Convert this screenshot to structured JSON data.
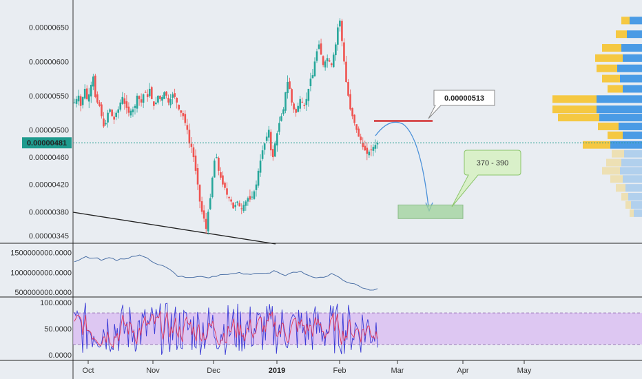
{
  "chart_data": [
    {
      "panel": "price",
      "type": "candlestick",
      "y_ticks": [
        "0.00000650",
        "0.00000600",
        "0.00000550",
        "0.00000500",
        "0.00000460",
        "0.00000420",
        "0.00000380",
        "0.00000345"
      ],
      "ylim": [
        3.4e-06,
        6.8e-06
      ],
      "current_price_label": "0.00000481",
      "current_price": 4.81e-06,
      "close_series": [
        5.4e-06,
        5.45e-06,
        5.5e-06,
        5.35e-06,
        5.48e-06,
        5.6e-06,
        5.45e-06,
        5.52e-06,
        5.66e-06,
        5.78e-06,
        5.48e-06,
        5.4e-06,
        5.35e-06,
        5.2e-06,
        5.05e-06,
        5.1e-06,
        5.25e-06,
        5.3e-06,
        5.2e-06,
        5.15e-06,
        5.25e-06,
        5.3e-06,
        5.4e-06,
        5.48e-06,
        5.38e-06,
        5.32e-06,
        5.25e-06,
        5.28e-06,
        5.3e-06,
        5.35e-06,
        5.5e-06,
        5.45e-06,
        5.4e-06,
        5.52e-06,
        5.55e-06,
        5.48e-06,
        5.6e-06,
        5.45e-06,
        5.35e-06,
        5.4e-06,
        5.5e-06,
        5.45e-06,
        5.48e-06,
        5.55e-06,
        5.5e-06,
        5.4e-06,
        5.45e-06,
        5.52e-06,
        5.48e-06,
        5.4e-06,
        5.3e-06,
        5.25e-06,
        5.2e-06,
        5.1e-06,
        5e-06,
        4.8e-06,
        4.75e-06,
        4.6e-06,
        4.4e-06,
        4.2e-06,
        3.95e-06,
        3.8e-06,
        3.7e-06,
        3.55e-06,
        3.8e-06,
        4e-06,
        4.3e-06,
        4.55e-06,
        4.6e-06,
        4.4e-06,
        4.3e-06,
        4.2e-06,
        4.15e-06,
        4.05e-06,
        4e-06,
        3.95e-06,
        3.85e-06,
        3.9e-06,
        3.95e-06,
        3.88e-06,
        3.85e-06,
        3.9e-06,
        3.95e-06,
        4e-06,
        3.98e-06,
        4.02e-06,
        4.1e-06,
        4.2e-06,
        4.4e-06,
        4.55e-06,
        4.7e-06,
        4.8e-06,
        4.9e-06,
        5e-06,
        4.7e-06,
        4.6e-06,
        4.8e-06,
        4.95e-06,
        5.1e-06,
        5.2e-06,
        5.3e-06,
        5.55e-06,
        5.7e-06,
        5.6e-06,
        5.4e-06,
        5.3e-06,
        5.25e-06,
        5.35e-06,
        5.45e-06,
        5.4e-06,
        5.35e-06,
        5.45e-06,
        5.6e-06,
        5.75e-06,
        5.8e-06,
        6e-06,
        6.15e-06,
        6.25e-06,
        6.1e-06,
        5.95e-06,
        6e-06,
        6.05e-06,
        6e-06,
        5.95e-06,
        6.1e-06,
        6.25e-06,
        6.5e-06,
        6.6e-06,
        6.3e-06,
        6e-06,
        5.7e-06,
        5.5e-06,
        5.3e-06,
        5.2e-06,
        5.1e-06,
        5e-06,
        4.9e-06,
        4.85e-06,
        4.75e-06,
        4.7e-06,
        4.65e-06,
        4.68e-06,
        4.7e-06,
        4.75e-06,
        4.78e-06,
        4.81e-06
      ],
      "horizontal_level_label": "0.00000513",
      "horizontal_level": 5.13e-06,
      "target_zone_label": "370 - 390",
      "target_zone": [
        3.7e-06,
        3.9e-06
      ],
      "annotations": [
        "0.00000513",
        "370 - 390"
      ]
    },
    {
      "panel": "volume-line",
      "type": "line",
      "y_ticks": [
        "1500000000.0000",
        "1000000000.0000",
        "500000000.0000"
      ],
      "ylim": [
        450000000,
        1650000000
      ],
      "values": [
        1250000000,
        1300000000,
        1350000000,
        1380000000,
        1360000000,
        1350000000,
        1340000000,
        1330000000,
        1350000000,
        1360000000,
        1340000000,
        1320000000,
        1330000000,
        1350000000,
        1360000000,
        1400000000,
        1430000000,
        1420000000,
        1380000000,
        1340000000,
        1300000000,
        1250000000,
        1200000000,
        1150000000,
        1100000000,
        1050000000,
        980000000,
        920000000,
        880000000,
        850000000,
        860000000,
        880000000,
        900000000,
        880000000,
        870000000,
        860000000,
        880000000,
        900000000,
        920000000,
        950000000,
        960000000,
        980000000,
        1000000000,
        990000000,
        980000000,
        970000000,
        960000000,
        950000000,
        960000000,
        970000000,
        980000000,
        1000000000,
        1050000000,
        1020000000,
        980000000,
        940000000,
        960000000,
        990000000,
        1010000000,
        1020000000,
        980000000,
        920000000,
        880000000,
        850000000,
        870000000,
        900000000,
        930000000,
        950000000,
        920000000,
        870000000,
        820000000,
        780000000,
        740000000,
        700000000,
        660000000,
        620000000,
        590000000,
        570000000,
        560000000,
        580000000
      ]
    },
    {
      "panel": "oscillator",
      "type": "line",
      "y_ticks": [
        "100.0000",
        "50.0000",
        "0.0000"
      ],
      "ylim": [
        -5,
        105
      ],
      "band": [
        20,
        80
      ]
    }
  ],
  "x_ticks": [
    "Oct",
    "Nov",
    "Dec",
    "2019",
    "Jan",
    "Feb",
    "Mar",
    "Apr",
    "May"
  ],
  "colors": {
    "background": "#e9edf2",
    "up": "#26a69a",
    "down": "#ef5350",
    "level": "#d32f2f",
    "current": "#1f9b8e",
    "volume_line": "#4a6fa5",
    "osc_blue": "#3a3ad6",
    "osc_red": "#e0365a",
    "osc_band": "#d7b7f2",
    "target_fill": "#9fd39a",
    "callout_fill": "#d9f0c9",
    "callout_border": "#8cc56c",
    "vp_yellow": "#f5c842",
    "vp_blue": "#4a9be5"
  }
}
